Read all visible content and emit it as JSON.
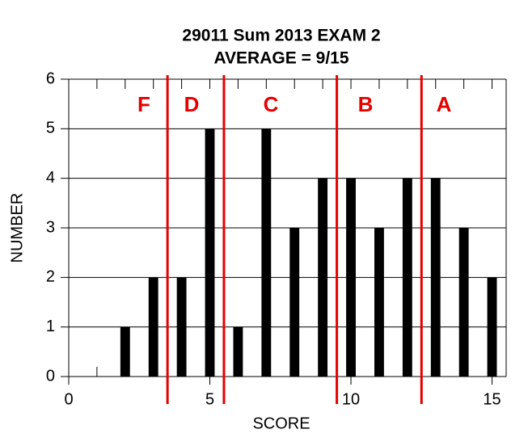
{
  "chart_data": {
    "type": "bar",
    "title": "29011 Sum 2013 EXAM 2",
    "subtitle": "AVERAGE = 9/15",
    "x_label": "SCORE",
    "y_label": "NUMBER",
    "x": [
      0,
      1,
      2,
      3,
      4,
      5,
      6,
      7,
      8,
      9,
      10,
      11,
      12,
      13,
      14,
      15
    ],
    "values": [
      0,
      0,
      1,
      2,
      2,
      5,
      1,
      5,
      3,
      4,
      4,
      3,
      4,
      4,
      3,
      2
    ],
    "color": "#000000",
    "xlim": [
      0,
      15.5
    ],
    "ylim": [
      0,
      6
    ],
    "xticks": [
      0,
      5,
      10,
      15
    ],
    "yticks": [
      0,
      1,
      2,
      3,
      4,
      5,
      6
    ],
    "grid": true,
    "cutoffs": [
      3.5,
      5.5,
      9.5,
      12.5
    ],
    "cutoff_color": "#e60000",
    "grades": [
      "F",
      "D",
      "C",
      "B",
      "A"
    ]
  }
}
